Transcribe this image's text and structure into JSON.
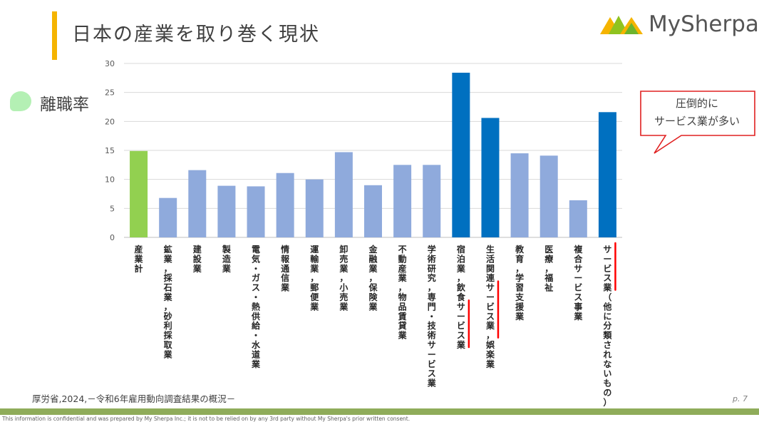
{
  "header": {
    "title": "日本の産業を取り巻く現状",
    "logo_text": "MySherpa"
  },
  "metric_label": "離職率",
  "chart_data": {
    "type": "bar",
    "categories": [
      "産業計",
      "鉱業，採石業，砂利採取業",
      "建設業",
      "製造業",
      "電気・ガス・熱供給・水道業",
      "情報通信業",
      "運輸業，郵便業",
      "卸売業，小売業",
      "金融業，保険業",
      "不動産業，物品賃貸業",
      "学術研究，専門・技術サービス業",
      "宿泊業，飲食サービス業",
      "生活関連サービス業，娯楽業",
      "教育，学習支援業",
      "医療，福祉",
      "複合サービス事業",
      "サービス業（他に分類されないもの）"
    ],
    "values": [
      14.9,
      6.8,
      11.6,
      8.9,
      8.8,
      11.1,
      10.0,
      14.7,
      9.0,
      12.5,
      12.5,
      28.4,
      20.6,
      14.5,
      14.1,
      6.4,
      21.6
    ],
    "bar_colors": [
      "#92d050",
      "#8faadc",
      "#8faadc",
      "#8faadc",
      "#8faadc",
      "#8faadc",
      "#8faadc",
      "#8faadc",
      "#8faadc",
      "#8faadc",
      "#8faadc",
      "#0070c0",
      "#0070c0",
      "#8faadc",
      "#8faadc",
      "#8faadc",
      "#0070c0"
    ],
    "ylim": [
      0,
      30
    ],
    "yticks": [
      0,
      5,
      10,
      15,
      20,
      25,
      30
    ],
    "grid": true,
    "highlight_color": "#ff0000"
  },
  "callout": {
    "line1": "圧倒的に",
    "line2": "サービス業が多い",
    "border_color": "#e02020"
  },
  "source": "厚労省,2024,－令和6年雇用動向調査結果の概況－",
  "page_number": "p. 7",
  "footer_note": "This information is confidential and was prepared by My Sherpa Inc.; it is not to be relied on by any 3rd party without My Sherpa's prior written consent."
}
